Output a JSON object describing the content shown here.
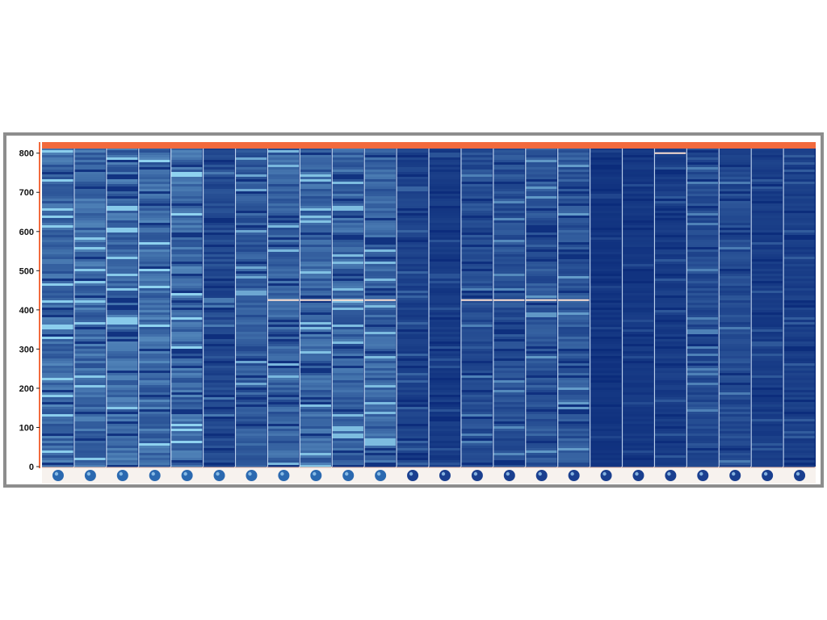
{
  "chart_data": {
    "type": "heatmap",
    "title": "",
    "xlabel": "",
    "ylabel": "",
    "ylim": [
      0,
      820
    ],
    "yticks": [
      "0",
      "100",
      "200",
      "300",
      "400",
      "500",
      "600",
      "700",
      "800"
    ],
    "ytick_values": [
      0,
      100,
      200,
      300,
      400,
      500,
      600,
      700,
      800
    ],
    "columns": 24,
    "rows": 820,
    "column_intensity": [
      0.72,
      0.7,
      0.7,
      0.74,
      0.74,
      0.35,
      0.55,
      0.62,
      0.66,
      0.64,
      0.64,
      0.25,
      0.18,
      0.38,
      0.42,
      0.48,
      0.5,
      0.12,
      0.15,
      0.2,
      0.38,
      0.36,
      0.2,
      0.22
    ],
    "highlight_rows": [
      {
        "columns": [
          7,
          8,
          9,
          10
        ],
        "y": 425
      },
      {
        "columns": [
          13,
          14,
          15,
          16
        ],
        "y": 425
      },
      {
        "columns": [
          19
        ],
        "y": 800
      }
    ],
    "top_marker_color": "#f26a3d",
    "low_color": "#0a2a7a",
    "high_color": "#8fd3f0",
    "grid": false,
    "legend": "none"
  }
}
